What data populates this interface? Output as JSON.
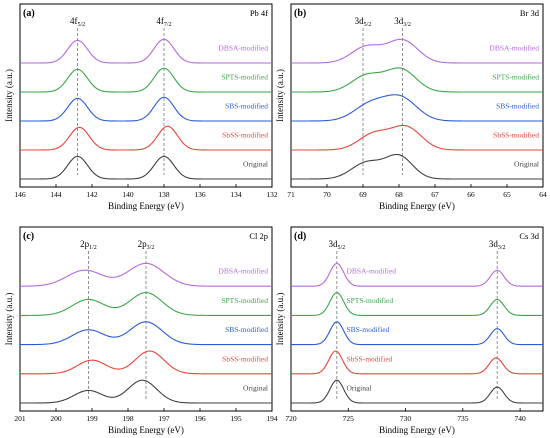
{
  "chart_data": [
    {
      "type": "line",
      "panel_letter": "(a)",
      "element": "Pb 4f",
      "xlabel": "Binding Energy (eV)",
      "ylabel": "Intensity (a.u.)",
      "x_reversed": true,
      "xlim": [
        146,
        132
      ],
      "xticks": [
        146,
        144,
        142,
        140,
        138,
        136,
        134,
        132
      ],
      "grid": false,
      "peak_labels": [
        {
          "base": "4f",
          "sub": "5/2",
          "x": 142.8
        },
        {
          "base": "4f",
          "sub": "7/2",
          "x": 138.0
        }
      ],
      "reference_lines": [
        142.8,
        138.0
      ],
      "series": [
        {
          "name": "Original",
          "color": "#404040",
          "peaks": [
            {
              "c": 142.8,
              "h": 1.0,
              "w": 0.55
            },
            {
              "c": 138.0,
              "h": 1.0,
              "w": 0.55
            }
          ]
        },
        {
          "name": "SbSS-modified",
          "color": "#e8443a",
          "peaks": [
            {
              "c": 142.7,
              "h": 1.0,
              "w": 0.55
            },
            {
              "c": 137.8,
              "h": 1.05,
              "w": 0.55
            }
          ]
        },
        {
          "name": "SBS-modified",
          "color": "#2a5bd7",
          "peaks": [
            {
              "c": 142.8,
              "h": 1.0,
              "w": 0.55
            },
            {
              "c": 138.0,
              "h": 1.05,
              "w": 0.55
            }
          ]
        },
        {
          "name": "SPTS-modified",
          "color": "#3aa64a",
          "peaks": [
            {
              "c": 142.8,
              "h": 1.0,
              "w": 0.55
            },
            {
              "c": 138.0,
              "h": 1.05,
              "w": 0.55
            }
          ]
        },
        {
          "name": "DBSA-modified",
          "color": "#b569e0",
          "peaks": [
            {
              "c": 142.8,
              "h": 1.0,
              "w": 0.55
            },
            {
              "c": 138.0,
              "h": 1.05,
              "w": 0.55
            }
          ]
        }
      ]
    },
    {
      "type": "line",
      "panel_letter": "(b)",
      "element": "Br 3d",
      "xlabel": "Binding Energy (eV)",
      "ylabel": "Intensity (a.u.)",
      "x_reversed": true,
      "xlim": [
        71,
        64
      ],
      "xticks": [
        71,
        70,
        69,
        68,
        67,
        66,
        65,
        64
      ],
      "grid": false,
      "peak_labels": [
        {
          "base": "3d",
          "sub": "5/2",
          "x": 69.0
        },
        {
          "base": "3d",
          "sub": "3/2",
          "x": 67.9
        }
      ],
      "reference_lines": [
        69.0,
        67.9
      ],
      "series": [
        {
          "name": "Original",
          "color": "#404040",
          "peaks": [
            {
              "c": 68.0,
              "h": 1.0,
              "w": 0.38
            },
            {
              "c": 68.9,
              "h": 0.72,
              "w": 0.42
            }
          ]
        },
        {
          "name": "SbSS-modified",
          "color": "#e8443a",
          "peaks": [
            {
              "c": 67.8,
              "h": 1.0,
              "w": 0.42
            },
            {
              "c": 68.7,
              "h": 0.7,
              "w": 0.42
            }
          ]
        },
        {
          "name": "SBS-modified",
          "color": "#2a5bd7",
          "peaks": [
            {
              "c": 67.95,
              "h": 1.0,
              "w": 0.45
            },
            {
              "c": 68.8,
              "h": 0.72,
              "w": 0.45
            }
          ]
        },
        {
          "name": "SPTS-modified",
          "color": "#3aa64a",
          "peaks": [
            {
              "c": 67.95,
              "h": 1.0,
              "w": 0.42
            },
            {
              "c": 68.9,
              "h": 0.72,
              "w": 0.42
            }
          ]
        },
        {
          "name": "DBSA-modified",
          "color": "#b569e0",
          "peaks": [
            {
              "c": 67.9,
              "h": 1.0,
              "w": 0.42
            },
            {
              "c": 68.9,
              "h": 0.72,
              "w": 0.42
            }
          ]
        }
      ]
    },
    {
      "type": "line",
      "panel_letter": "(c)",
      "element": "Cl 2p",
      "xlabel": "Binding Energy (eV)",
      "ylabel": "Intensity (a.u.)",
      "x_reversed": true,
      "xlim": [
        201,
        194
      ],
      "xticks": [
        201,
        200,
        199,
        198,
        197,
        196,
        195,
        194
      ],
      "grid": false,
      "peak_labels": [
        {
          "base": "2p",
          "sub": "1/2",
          "x": 199.1
        },
        {
          "base": "2p",
          "sub": "3/2",
          "x": 197.5
        }
      ],
      "reference_lines": [
        199.1,
        197.5
      ],
      "series": [
        {
          "name": "Original",
          "color": "#404040",
          "peaks": [
            {
              "c": 199.1,
              "h": 0.55,
              "w": 0.4
            },
            {
              "c": 197.6,
              "h": 1.0,
              "w": 0.4
            }
          ]
        },
        {
          "name": "SbSS-modified",
          "color": "#e8443a",
          "peaks": [
            {
              "c": 199.0,
              "h": 0.6,
              "w": 0.4
            },
            {
              "c": 197.4,
              "h": 1.0,
              "w": 0.4
            }
          ]
        },
        {
          "name": "SBS-modified",
          "color": "#2a5bd7",
          "peaks": [
            {
              "c": 199.1,
              "h": 0.65,
              "w": 0.45
            },
            {
              "c": 197.5,
              "h": 1.0,
              "w": 0.45
            }
          ]
        },
        {
          "name": "SPTS-modified",
          "color": "#3aa64a",
          "peaks": [
            {
              "c": 199.1,
              "h": 0.7,
              "w": 0.45
            },
            {
              "c": 197.5,
              "h": 1.0,
              "w": 0.45
            }
          ]
        },
        {
          "name": "DBSA-modified",
          "color": "#b569e0",
          "peaks": [
            {
              "c": 199.2,
              "h": 0.7,
              "w": 0.5
            },
            {
              "c": 197.5,
              "h": 1.0,
              "w": 0.5
            }
          ]
        }
      ]
    },
    {
      "type": "line",
      "panel_letter": "(d)",
      "element": "Cs 3d",
      "xlabel": "Binding Energy (eV)",
      "ylabel": "Intensity (a.u.)",
      "x_reversed": false,
      "xlim": [
        720,
        742
      ],
      "xticks": [
        720,
        725,
        730,
        735,
        740
      ],
      "grid": false,
      "peak_labels": [
        {
          "base": "3d",
          "sub": "5/2",
          "x": 724.0
        },
        {
          "base": "3d",
          "sub": "3/2",
          "x": 738.0
        }
      ],
      "reference_lines": [
        724.0,
        738.0
      ],
      "series": [
        {
          "name": "Original",
          "color": "#404040",
          "peaks": [
            {
              "c": 724.0,
              "h": 1.0,
              "w": 0.6
            },
            {
              "c": 738.0,
              "h": 0.7,
              "w": 0.6
            }
          ]
        },
        {
          "name": "SbSS-modified",
          "color": "#e8443a",
          "peaks": [
            {
              "c": 723.9,
              "h": 1.0,
              "w": 0.6
            },
            {
              "c": 737.9,
              "h": 0.7,
              "w": 0.6
            }
          ]
        },
        {
          "name": "SBS-modified",
          "color": "#2a5bd7",
          "peaks": [
            {
              "c": 724.0,
              "h": 1.0,
              "w": 0.6
            },
            {
              "c": 738.0,
              "h": 0.7,
              "w": 0.6
            }
          ]
        },
        {
          "name": "SPTS-modified",
          "color": "#3aa64a",
          "peaks": [
            {
              "c": 724.0,
              "h": 1.0,
              "w": 0.6
            },
            {
              "c": 738.0,
              "h": 0.7,
              "w": 0.6
            }
          ]
        },
        {
          "name": "DBSA-modified",
          "color": "#b569e0",
          "peaks": [
            {
              "c": 724.0,
              "h": 1.0,
              "w": 0.6
            },
            {
              "c": 738.0,
              "h": 0.7,
              "w": 0.6
            }
          ]
        }
      ]
    }
  ]
}
